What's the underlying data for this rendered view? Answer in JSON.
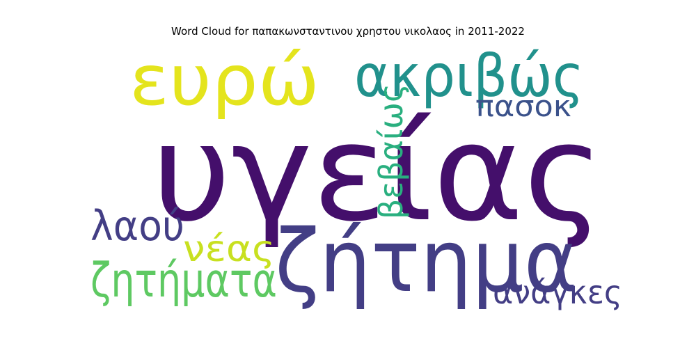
{
  "title": "Word Cloud for παπακωνσταντινου χρηστου νικολαος in 2011-2022",
  "words": [
    {
      "text": "υγείας",
      "color": "#440f6b"
    },
    {
      "text": "ευρώ",
      "color": "#e4e41d"
    },
    {
      "text": "ακριβώς",
      "color": "#21918c"
    },
    {
      "text": "ζήτημα",
      "color": "#433e85"
    },
    {
      "text": "πασοκ",
      "color": "#3b528b"
    },
    {
      "text": "βεβαίως",
      "color": "#29af7f"
    },
    {
      "text": "λαού",
      "color": "#433e85"
    },
    {
      "text": "νέας",
      "color": "#c8e020"
    },
    {
      "text": "ζητήματα",
      "color": "#5ec962"
    },
    {
      "text": "ανάγκες",
      "color": "#433e85"
    }
  ]
}
